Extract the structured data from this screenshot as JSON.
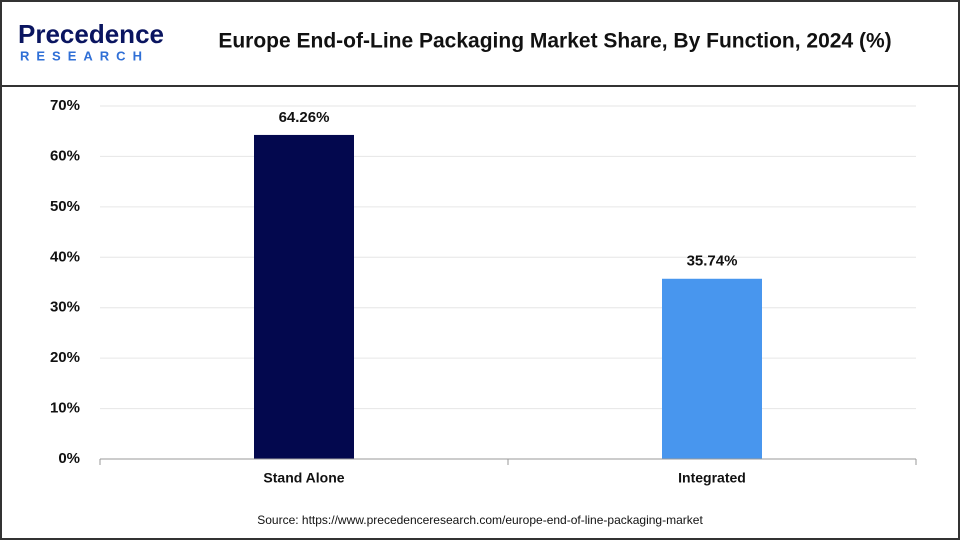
{
  "logo": {
    "name": "Precedence",
    "tagline": "RESEARCH"
  },
  "chart_data": {
    "type": "bar",
    "title": "Europe End-of-Line Packaging Market Share, By Function, 2024 (%)",
    "categories": [
      "Stand Alone",
      "Integrated"
    ],
    "values": [
      64.26,
      35.74
    ],
    "value_labels": [
      "64.26%",
      "35.74%"
    ],
    "colors": [
      "#03084e",
      "#4896ee"
    ],
    "ylim": [
      0,
      70
    ],
    "yticks": [
      {
        "value": 0,
        "label": "0%"
      },
      {
        "value": 10,
        "label": "10%"
      },
      {
        "value": 20,
        "label": "20%"
      },
      {
        "value": 30,
        "label": "30%"
      },
      {
        "value": 40,
        "label": "40%"
      },
      {
        "value": 50,
        "label": "50%"
      },
      {
        "value": 60,
        "label": "60%"
      },
      {
        "value": 70,
        "label": "70%"
      }
    ],
    "grid": true,
    "source": "Source: https://www.precedenceresearch.com/europe-end-of-line-packaging-market"
  }
}
